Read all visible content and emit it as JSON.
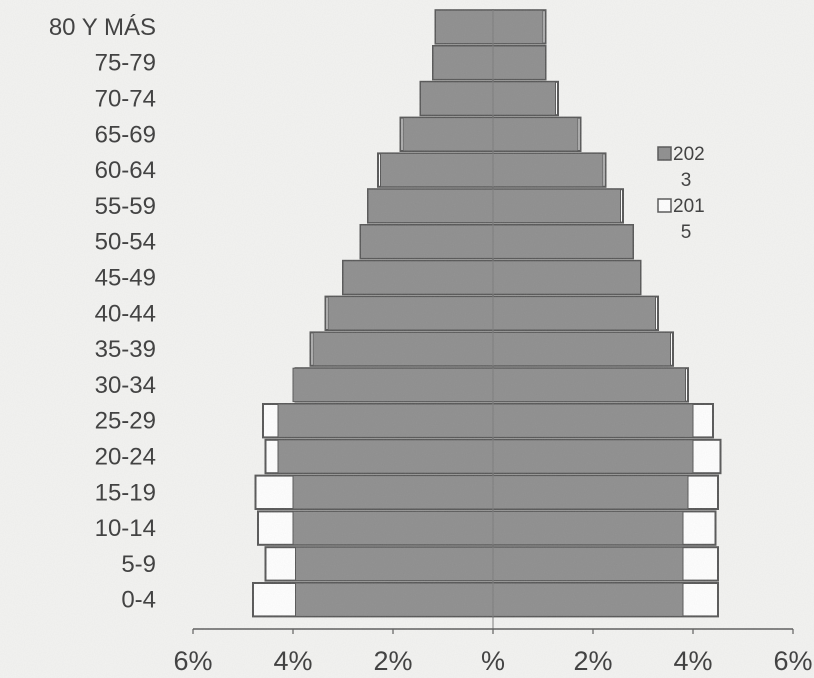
{
  "chart_data": {
    "type": "bar",
    "subtype": "population-pyramid",
    "title": "",
    "xlabel": "",
    "ylabel": "",
    "xlim": [
      -6,
      6
    ],
    "x_ticks": [
      {
        "value": -6,
        "label": "6%"
      },
      {
        "value": -4,
        "label": "4%"
      },
      {
        "value": -2,
        "label": "2%"
      },
      {
        "value": 0,
        "label": "%"
      },
      {
        "value": 2,
        "label": "2%"
      },
      {
        "value": 4,
        "label": "4%"
      },
      {
        "value": 6,
        "label": "6%"
      }
    ],
    "categories": [
      "0-4",
      "5-9",
      "10-14",
      "15-19",
      "20-24",
      "25-29",
      "30-34",
      "35-39",
      "40-44",
      "45-49",
      "50-54",
      "55-59",
      "60-64",
      "65-69",
      "70-74",
      "75-79",
      "80 Y MÁS"
    ],
    "series": [
      {
        "name": "2023",
        "color": "#8d8d8d",
        "left": [
          3.95,
          3.95,
          4.0,
          4.0,
          4.3,
          4.3,
          4.0,
          3.6,
          3.3,
          3.0,
          2.65,
          2.5,
          2.25,
          1.8,
          1.45,
          1.2,
          1.15
        ],
        "right": [
          3.8,
          3.8,
          3.8,
          3.9,
          4.0,
          4.0,
          3.85,
          3.55,
          3.25,
          2.95,
          2.8,
          2.55,
          2.2,
          1.7,
          1.25,
          1.05,
          1.0
        ]
      },
      {
        "name": "2015",
        "color": "#ffffff",
        "left": [
          4.8,
          4.55,
          4.7,
          4.75,
          4.55,
          4.6,
          3.95,
          3.65,
          3.35,
          3.0,
          2.65,
          2.5,
          2.3,
          1.85,
          1.45,
          1.2,
          1.15
        ],
        "right": [
          4.5,
          4.5,
          4.45,
          4.5,
          4.55,
          4.4,
          3.9,
          3.6,
          3.3,
          2.95,
          2.8,
          2.6,
          2.25,
          1.75,
          1.3,
          1.05,
          1.05
        ]
      }
    ],
    "legend": {
      "position": "right",
      "entries": [
        {
          "lines": [
            "202",
            "3"
          ]
        },
        {
          "lines": [
            "201",
            "5"
          ]
        }
      ]
    },
    "grid": false
  }
}
